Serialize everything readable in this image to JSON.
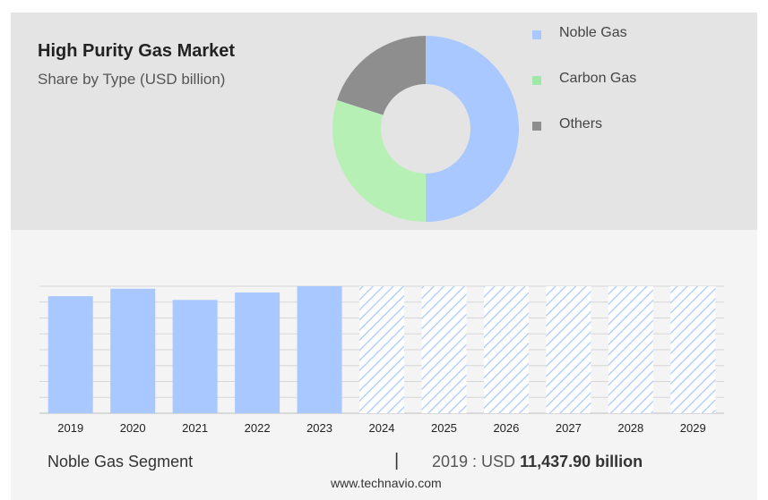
{
  "header": {
    "title": "High Purity Gas Market",
    "subtitle": "Share by Type (USD billion)"
  },
  "legend": [
    {
      "label": "Noble Gas",
      "color": "#a9c8ff"
    },
    {
      "label": "Carbon Gas",
      "color": "#9ee8a8"
    },
    {
      "label": "Others",
      "color": "#8e8e8e"
    }
  ],
  "footer": {
    "segment": "Noble Gas Segment",
    "separator": "|",
    "year_prefix": "2019 : USD ",
    "value": "11,437.90 billion",
    "url": "www.technavio.com"
  },
  "chart_data": [
    {
      "type": "pie",
      "variant": "donut",
      "categories": [
        "Noble Gas",
        "Carbon Gas",
        "Others"
      ],
      "values": [
        50,
        30,
        20
      ],
      "colors": [
        "#a9c8ff",
        "#b6f0b5",
        "#8e8e8e"
      ]
    },
    {
      "type": "bar",
      "categories": [
        "2019",
        "2020",
        "2021",
        "2022",
        "2023",
        "2024",
        "2025",
        "2026",
        "2027",
        "2028",
        "2029"
      ],
      "values": [
        94,
        100,
        91,
        97,
        102,
        102,
        102,
        102,
        102,
        102,
        102
      ],
      "forecast": [
        false,
        false,
        false,
        false,
        false,
        true,
        true,
        true,
        true,
        true,
        true
      ],
      "ylim": [
        0,
        102
      ],
      "grid": true,
      "solid_color": "#a9c8ff",
      "forecast_color": "#a9c8ff"
    }
  ]
}
